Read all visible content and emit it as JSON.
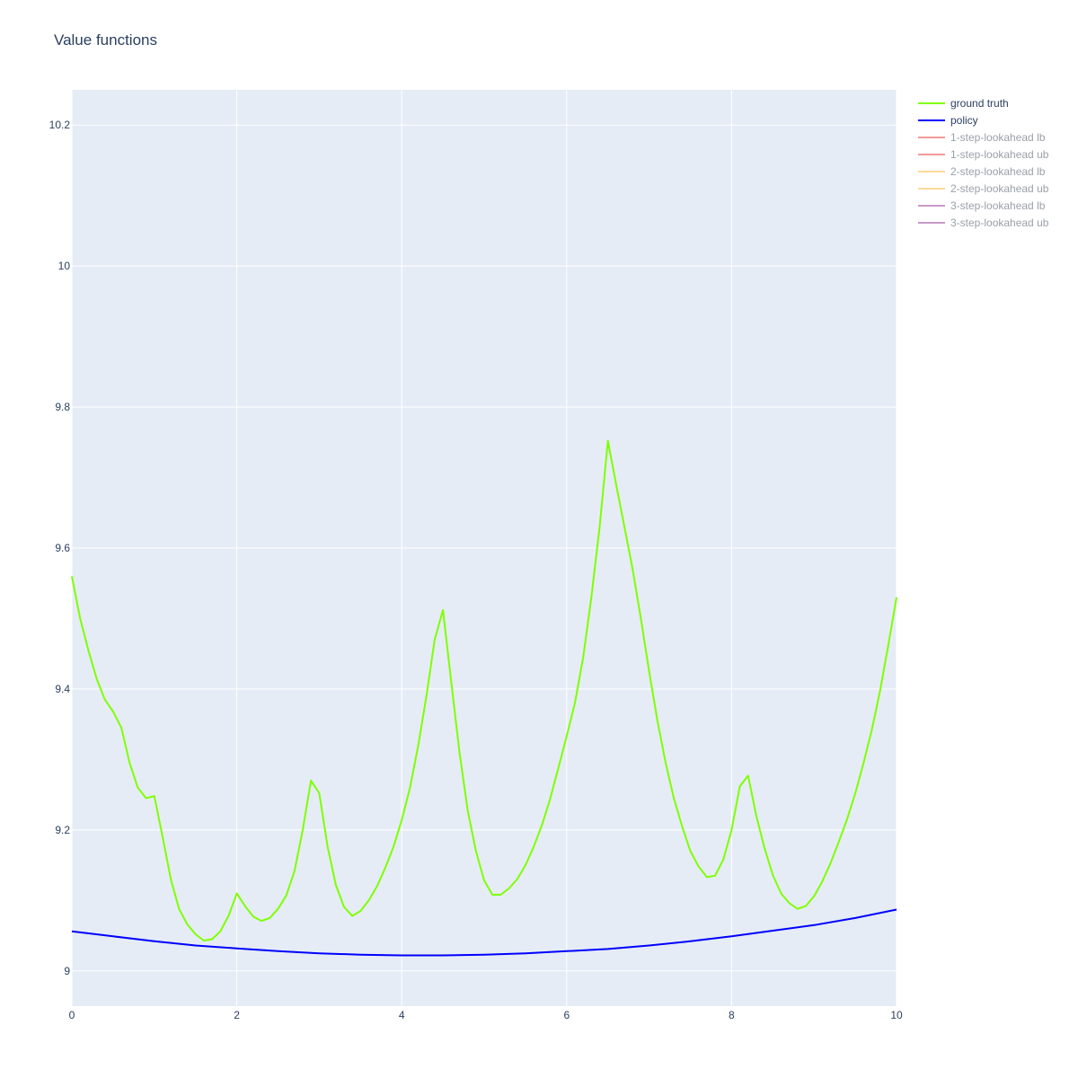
{
  "chart_data": {
    "type": "line",
    "title": "Value functions",
    "xlabel": "",
    "ylabel": "",
    "xlim": [
      0,
      10
    ],
    "ylim": [
      8.95,
      10.25
    ],
    "xticks": [
      0,
      2,
      4,
      6,
      8,
      10
    ],
    "xtick_labels": [
      "0",
      "2",
      "4",
      "6",
      "8",
      "10"
    ],
    "yticks": [
      9,
      9.2,
      9.4,
      9.6,
      9.8,
      10,
      10.2
    ],
    "ytick_labels": [
      "9",
      "9.2",
      "9.4",
      "9.6",
      "9.8",
      "10",
      "10.2"
    ],
    "grid": true,
    "legend_position": "right",
    "series": [
      {
        "name": "ground truth",
        "color": "#7fff00",
        "visible": true,
        "x": [
          0,
          0.1,
          0.2,
          0.3,
          0.4,
          0.5,
          0.6,
          0.7,
          0.8,
          0.9,
          1.0,
          1.1,
          1.2,
          1.3,
          1.4,
          1.5,
          1.6,
          1.7,
          1.8,
          1.9,
          2.0,
          2.1,
          2.2,
          2.3,
          2.4,
          2.5,
          2.6,
          2.7,
          2.8,
          2.9,
          3.0,
          3.1,
          3.2,
          3.3,
          3.4,
          3.5,
          3.6,
          3.7,
          3.8,
          3.9,
          4.0,
          4.1,
          4.2,
          4.3,
          4.4,
          4.5,
          4.6,
          4.7,
          4.8,
          4.9,
          5.0,
          5.1,
          5.2,
          5.3,
          5.4,
          5.5,
          5.6,
          5.7,
          5.8,
          5.9,
          6.0,
          6.1,
          6.2,
          6.3,
          6.4,
          6.5,
          6.6,
          6.7,
          6.8,
          6.9,
          7.0,
          7.1,
          7.2,
          7.3,
          7.4,
          7.5,
          7.6,
          7.7,
          7.8,
          7.9,
          8.0,
          8.1,
          8.2,
          8.3,
          8.4,
          8.5,
          8.6,
          8.7,
          8.8,
          8.9,
          9.0,
          9.1,
          9.2,
          9.3,
          9.4,
          9.5,
          9.6,
          9.7,
          9.8,
          9.9,
          10.0
        ],
        "y": [
          9.56,
          9.5,
          9.455,
          9.415,
          9.385,
          9.368,
          9.345,
          9.295,
          9.26,
          9.245,
          9.248,
          9.19,
          9.13,
          9.088,
          9.066,
          9.052,
          9.043,
          9.045,
          9.056,
          9.078,
          9.11,
          9.092,
          9.077,
          9.071,
          9.075,
          9.088,
          9.107,
          9.142,
          9.2,
          9.27,
          9.252,
          9.177,
          9.122,
          9.091,
          9.078,
          9.085,
          9.1,
          9.12,
          9.146,
          9.176,
          9.214,
          9.26,
          9.32,
          9.39,
          9.47,
          9.512,
          9.41,
          9.31,
          9.228,
          9.17,
          9.128,
          9.108,
          9.108,
          9.117,
          9.13,
          9.15,
          9.176,
          9.207,
          9.244,
          9.288,
          9.333,
          9.38,
          9.445,
          9.53,
          9.63,
          9.752,
          9.69,
          9.63,
          9.57,
          9.5,
          9.425,
          9.355,
          9.295,
          9.245,
          9.205,
          9.17,
          9.148,
          9.133,
          9.135,
          9.158,
          9.2,
          9.262,
          9.277,
          9.22,
          9.174,
          9.136,
          9.11,
          9.096,
          9.088,
          9.092,
          9.106,
          9.127,
          9.153,
          9.183,
          9.215,
          9.252,
          9.295,
          9.342,
          9.397,
          9.462,
          9.53
        ]
      },
      {
        "name": "policy",
        "color": "#0000ff",
        "visible": true,
        "x": [
          0,
          0.5,
          1,
          1.5,
          2,
          2.5,
          3,
          3.5,
          4,
          4.5,
          5,
          5.5,
          6,
          6.5,
          7,
          7.5,
          8,
          8.5,
          9,
          9.5,
          10
        ],
        "y": [
          9.056,
          9.049,
          9.042,
          9.036,
          9.032,
          9.028,
          9.025,
          9.023,
          9.022,
          9.022,
          9.023,
          9.025,
          9.028,
          9.031,
          9.036,
          9.042,
          9.049,
          9.057,
          9.065,
          9.075,
          9.087
        ]
      },
      {
        "name": "1-step-lookahead lb",
        "color": "#f08080",
        "visible": false,
        "x": [],
        "y": []
      },
      {
        "name": "1-step-lookahead ub",
        "color": "#f08080",
        "visible": false,
        "x": [],
        "y": []
      },
      {
        "name": "2-step-lookahead lb",
        "color": "#ffd280",
        "visible": false,
        "x": [],
        "y": []
      },
      {
        "name": "2-step-lookahead ub",
        "color": "#ffd280",
        "visible": false,
        "x": [],
        "y": []
      },
      {
        "name": "3-step-lookahead lb",
        "color": "#bb80bb",
        "visible": false,
        "x": [],
        "y": []
      },
      {
        "name": "3-step-lookahead ub",
        "color": "#bb80bb",
        "visible": false,
        "x": [],
        "y": []
      }
    ]
  }
}
